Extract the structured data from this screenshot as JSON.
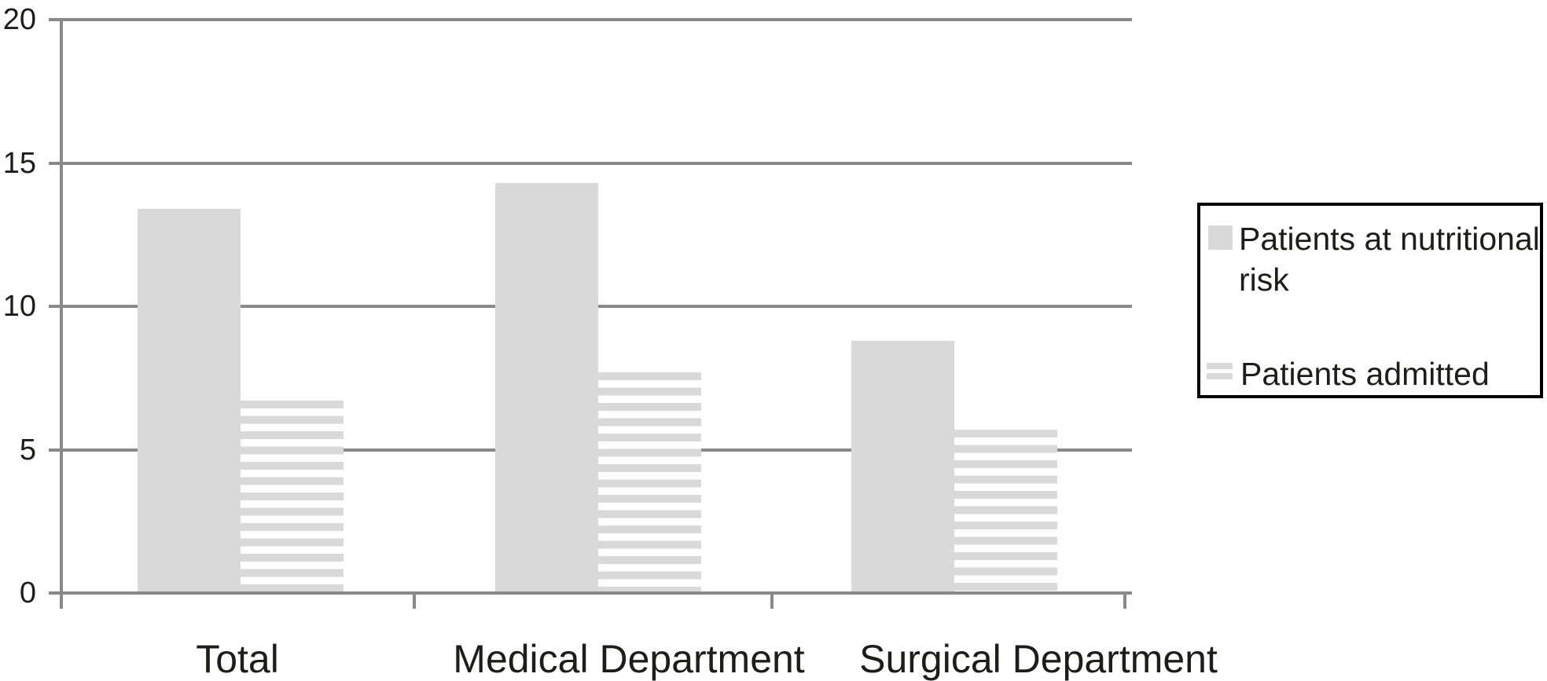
{
  "chart_data": {
    "type": "bar",
    "title": "",
    "categories": [
      "Total",
      "Medical Department",
      "Surgical Department"
    ],
    "series": [
      {
        "name": "Patients at nutritional risk",
        "pattern": "solid",
        "values": [
          13.4,
          14.3,
          8.8
        ]
      },
      {
        "name": "Patients admitted",
        "pattern": "striped",
        "values": [
          6.7,
          7.7,
          5.7
        ]
      }
    ],
    "xlabel": "",
    "ylabel": "",
    "ylim": [
      0,
      20
    ],
    "yticks": [
      20,
      15,
      10,
      5,
      0
    ],
    "grid": "horizontal-lines",
    "legend_position": "right",
    "colors": {
      "bar_fill": "#d9d9d9",
      "grid_line": "#898989",
      "text": "#1d1d1b",
      "legend_border": "#000000",
      "background": "#ffffff"
    }
  }
}
